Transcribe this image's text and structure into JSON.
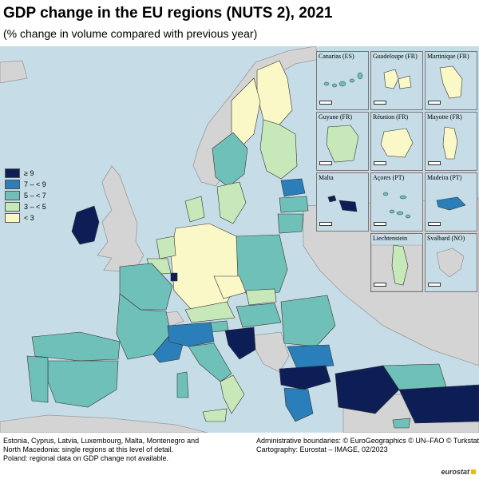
{
  "title": "GDP change in the EU regions (NUTS 2), 2021",
  "subtitle": "(% change in volume compared with previous year)",
  "legend": [
    {
      "label": "≥ 9",
      "color": "#0d1e56"
    },
    {
      "label": "7 – < 9",
      "color": "#2a7fba"
    },
    {
      "label": "5 – < 7",
      "color": "#6fc0b8"
    },
    {
      "label": "3 – < 5",
      "color": "#c7e8b8"
    },
    {
      "label": "< 3",
      "color": "#fbf8c8"
    }
  ],
  "colors": {
    "sea": "#c6dde8",
    "non_eu_land": "#d4d4d4",
    "border": "#333333"
  },
  "insets": [
    {
      "name": "Canarias (ES)",
      "scale": "0   100"
    },
    {
      "name": "Guadeloupe (FR)",
      "scale": "0   25"
    },
    {
      "name": "Martinique (FR)",
      "scale": "0   20"
    },
    {
      "name": "Guyane (FR)",
      "scale": "0   100"
    },
    {
      "name": "Réunion (FR)",
      "scale": "0   20"
    },
    {
      "name": "Mayotte (FR)",
      "scale": "0   15"
    },
    {
      "name": "Malta",
      "scale": "0   10"
    },
    {
      "name": "Açores (PT)",
      "scale": "0   50"
    },
    {
      "name": "Madeira (PT)",
      "scale": "0   20"
    },
    {
      "name": "Liechtenstein",
      "scale": "0   5"
    },
    {
      "name": "Svalbard (NO)",
      "scale": "0   100"
    }
  ],
  "notes": [
    "Estonia, Cyprus, Latvia, Luxembourg, Malta, Montenegro and",
    "North Macedonia: single regions at this level of detail.",
    "Poland: regional data on GDP change not available."
  ],
  "credits": [
    "Administrative boundaries: © EuroGeographics © UN–FAO © Turkstat",
    "Cartography: Eurostat – IMAGE, 02/2023"
  ],
  "brand": "eurostat"
}
